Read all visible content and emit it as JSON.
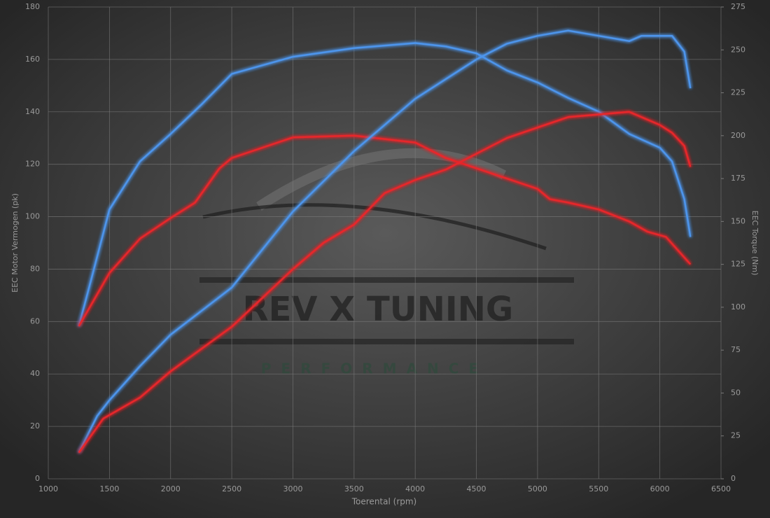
{
  "chart_data": {
    "type": "line",
    "xlabel": "Toerental (rpm)",
    "ylabel": "EEC Motor Vermogen (pk)",
    "y2label": "EEC Torque (Nm)",
    "watermark": [
      "REV X TUNING",
      "PERFORMANCE"
    ],
    "xlim": [
      1000,
      6500
    ],
    "xticks": [
      1000,
      1500,
      2000,
      2500,
      3000,
      3500,
      4000,
      4500,
      5000,
      5500,
      6000,
      6500
    ],
    "ylim": [
      0,
      180
    ],
    "yticks": [
      0,
      20,
      40,
      60,
      80,
      100,
      120,
      140,
      160,
      180
    ],
    "y2lim": [
      0,
      275
    ],
    "y2ticks": [
      0,
      25,
      50,
      75,
      100,
      125,
      150,
      175,
      200,
      225,
      250,
      275
    ],
    "grid": true,
    "series": [
      {
        "color": "#4d95ec",
        "axis": "y2",
        "x": [
          1250,
          1350,
          1500,
          1750,
          2000,
          2250,
          2500,
          2750,
          3000,
          3500,
          4000,
          4250,
          4500,
          4750,
          5000,
          5250,
          5500,
          5750,
          6000,
          6100,
          6200,
          6250
        ],
        "values": [
          89,
          116,
          157,
          185,
          201,
          218,
          236,
          241,
          246,
          251,
          254,
          252,
          248,
          238,
          231,
          222,
          214,
          201,
          193,
          185,
          163,
          141
        ]
      },
      {
        "color": "#e8262a",
        "axis": "y2",
        "x": [
          1250,
          1500,
          1750,
          2000,
          2200,
          2400,
          2500,
          2750,
          3000,
          3500,
          4000,
          4250,
          4500,
          4750,
          5000,
          5100,
          5250,
          5500,
          5750,
          5900,
          6050,
          6250
        ],
        "values": [
          89,
          120,
          140,
          152,
          161,
          181,
          187,
          193,
          199,
          200,
          196,
          187,
          181,
          175,
          169,
          163,
          161,
          157,
          150,
          144,
          141,
          125
        ]
      },
      {
        "color": "#4d95ec",
        "axis": "y",
        "x": [
          1250,
          1400,
          1500,
          1750,
          2000,
          2500,
          3000,
          3500,
          4000,
          4500,
          4750,
          5000,
          5250,
          5500,
          5750,
          5850,
          6100,
          6200,
          6250
        ],
        "values": [
          10,
          24,
          30,
          43,
          55,
          73,
          102,
          125,
          145,
          160,
          166,
          169,
          171,
          169,
          167,
          169,
          169,
          163,
          149
        ]
      },
      {
        "color": "#e8262a",
        "axis": "y",
        "x": [
          1250,
          1450,
          1750,
          2000,
          2500,
          3000,
          3250,
          3500,
          3750,
          4000,
          4250,
          4500,
          4750,
          5000,
          5250,
          5500,
          5750,
          6000,
          6100,
          6200,
          6250
        ],
        "values": [
          10,
          23,
          31,
          41,
          58,
          80,
          90,
          97,
          109,
          114,
          118,
          124,
          130,
          134,
          138,
          139,
          140,
          135,
          132,
          127,
          119
        ]
      }
    ]
  }
}
